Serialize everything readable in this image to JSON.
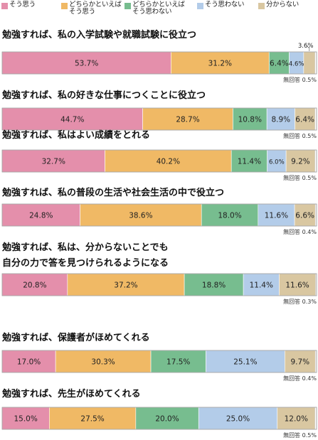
{
  "chart_data": {
    "type": "bar",
    "orientation": "horizontal-stacked-100",
    "series": [
      {
        "name": "そう思う",
        "color": "#e48fab"
      },
      {
        "name": "どちらかといえば\nそう思う",
        "color": "#f0b965"
      },
      {
        "name": "どちらかといえば\nそう思わない",
        "color": "#77bd8f"
      },
      {
        "name": "そう思わない",
        "color": "#b3cce9"
      },
      {
        "name": "分からない",
        "color": "#d9c7a1"
      }
    ],
    "no_answer_label": "無回答",
    "items": [
      {
        "title": [
          "勉強すれば、私の入学試験や就職試験に役立つ"
        ],
        "values": [
          53.7,
          31.2,
          6.4,
          4.6,
          3.6
        ],
        "no_answer": 0.5
      },
      {
        "title": [
          "勉強すれば、私の好きな仕事につくことに役立つ"
        ],
        "values": [
          44.7,
          28.7,
          10.8,
          8.9,
          6.4
        ],
        "no_answer": 0.5
      },
      {
        "title": [
          "勉強すれば、私はよい成績をとれる"
        ],
        "values": [
          32.7,
          40.2,
          11.4,
          6.0,
          9.2
        ],
        "no_answer": 0.5
      },
      {
        "title": [
          "勉強すれば、私の普段の生活や社会生活の中で役立つ"
        ],
        "values": [
          24.8,
          38.6,
          18.0,
          11.6,
          6.6
        ],
        "no_answer": 0.4
      },
      {
        "title": [
          "勉強すれば、私は、分からないことでも",
          "自分の力で答を見つけられるようになる"
        ],
        "values": [
          20.8,
          37.2,
          18.8,
          11.4,
          11.6
        ],
        "no_answer": 0.3
      },
      {
        "title": [
          "勉強すれば、保護者がほめてくれる"
        ],
        "values": [
          17.0,
          30.3,
          17.5,
          25.1,
          9.7
        ],
        "no_answer": 0.4
      },
      {
        "title": [
          "勉強すれば、先生がほめてくれる"
        ],
        "values": [
          15.0,
          27.5,
          20.0,
          25.0,
          12.0
        ],
        "no_answer": 0.5
      }
    ]
  }
}
